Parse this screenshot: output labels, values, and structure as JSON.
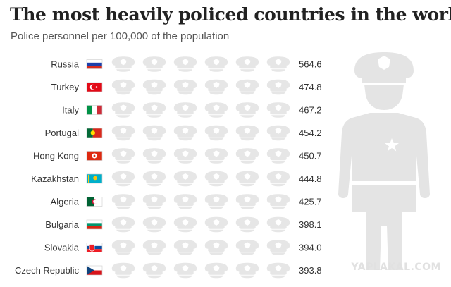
{
  "header": {
    "title": "The most heavily policed countries in the world",
    "subtitle": "Police personnel per 100,000 of the population"
  },
  "watermark": "YAPLAKAL.COM",
  "icons": {
    "unit_icon": "police-cap-icon",
    "illustration": "police-officer-silhouette-icon",
    "empty_color": "#e6e6e6"
  },
  "chart_data": {
    "type": "bar",
    "style": "pictogram",
    "title": "The most heavily policed countries in the world",
    "subtitle": "Police personnel per 100,000 of the population",
    "xlabel": "",
    "ylabel": "",
    "grid": false,
    "categories": [
      "Russia",
      "Turkey",
      "Italy",
      "Portugal",
      "Hong Kong",
      "Kazakhstan",
      "Algeria",
      "Bulgaria",
      "Slovakia",
      "Czech Republic"
    ],
    "values": [
      564.6,
      474.8,
      467.2,
      454.2,
      450.7,
      444.8,
      425.7,
      398.1,
      394.0,
      393.8
    ],
    "value_labels": [
      "564.6",
      "474.8",
      "467.2",
      "454.2",
      "450.7",
      "444.8",
      "425.7",
      "398.1",
      "394.0",
      "393.8"
    ],
    "per_icon": 100,
    "icon_count": 6,
    "flags": [
      "russia-flag-icon",
      "turkey-flag-icon",
      "italy-flag-icon",
      "portugal-flag-icon",
      "hong-kong-flag-icon",
      "kazakhstan-flag-icon",
      "algeria-flag-icon",
      "bulgaria-flag-icon",
      "slovakia-flag-icon",
      "czech-republic-flag-icon"
    ],
    "colors": [
      "#4a67db",
      "#4b74d4",
      "#4a7fcd",
      "#4a88c2",
      "#4891b6",
      "#4a9aac",
      "#48a39f",
      "#48ab92",
      "#48b386",
      "#4ab97c"
    ]
  }
}
